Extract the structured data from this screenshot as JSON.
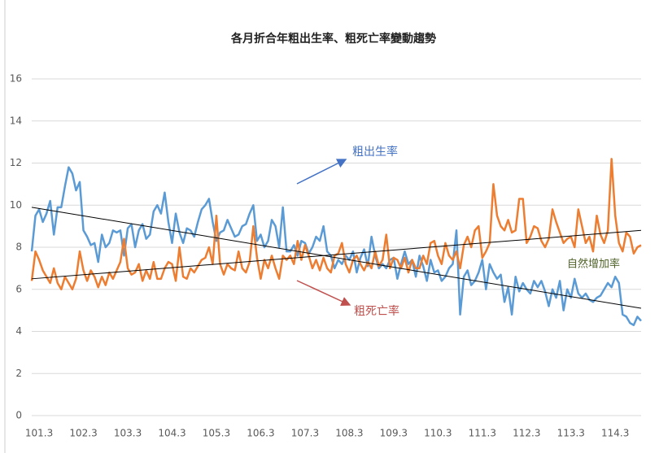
{
  "chart_data": {
    "type": "line",
    "title": "各月折合年粗出生率、粗死亡率變動趨勢",
    "categories": [
      null,
      null,
      "101.3",
      null,
      null,
      null,
      null,
      null,
      null,
      null,
      null,
      null,
      null,
      null,
      "102.3",
      null,
      null,
      null,
      null,
      null,
      null,
      null,
      null,
      null,
      null,
      null,
      "103.3",
      null,
      null,
      null,
      null,
      null,
      null,
      null,
      null,
      null,
      null,
      null,
      "104.3",
      null,
      null,
      null,
      null,
      null,
      null,
      null,
      null,
      null,
      null,
      null,
      "105.3",
      null,
      null,
      null,
      null,
      null,
      null,
      null,
      null,
      null,
      null,
      null,
      "106.3",
      null,
      null,
      null,
      null,
      null,
      null,
      null,
      null,
      null,
      null,
      null,
      "107.3",
      null,
      null,
      null,
      null,
      null,
      null,
      null,
      null,
      null,
      null,
      null,
      "108.3",
      null,
      null,
      null,
      null,
      null,
      null,
      null,
      null,
      null,
      null,
      null,
      "109.3",
      null,
      null,
      null,
      null,
      null,
      null,
      null,
      null,
      null,
      null,
      null,
      "110.3",
      null,
      null,
      null,
      null,
      null,
      null,
      null,
      null,
      null,
      null,
      null,
      "111.3",
      null,
      null,
      null,
      null,
      null,
      null,
      null,
      null,
      null,
      null,
      null,
      "112.3",
      null,
      null,
      null,
      null,
      null,
      null,
      null,
      null,
      null,
      null,
      null,
      "113.3",
      null,
      null,
      null,
      null,
      null,
      null,
      null,
      null,
      null,
      null,
      null,
      "114.3",
      null,
      null,
      null,
      null,
      null,
      null,
      null
    ],
    "series": [
      {
        "name": "粗出生率",
        "color": "#5b9bd5",
        "trend": [
          9.9,
          5.1
        ],
        "values": [
          7.8,
          9.5,
          9.8,
          9.2,
          9.6,
          10.2,
          8.6,
          9.9,
          9.9,
          10.9,
          11.8,
          11.5,
          10.7,
          11.1,
          8.8,
          8.5,
          8.1,
          8.2,
          7.3,
          8.6,
          8.0,
          8.2,
          8.8,
          8.7,
          8.8,
          7.6,
          8.9,
          9.1,
          8.0,
          8.8,
          9.1,
          8.4,
          8.6,
          9.7,
          10.0,
          9.6,
          10.6,
          9.2,
          8.2,
          9.6,
          8.7,
          8.2,
          8.9,
          8.8,
          8.5,
          9.2,
          9.8,
          10.0,
          10.3,
          9.2,
          8.3,
          8.7,
          8.8,
          9.3,
          8.9,
          8.5,
          8.6,
          9.0,
          9.1,
          9.6,
          10.0,
          8.3,
          8.6,
          8.0,
          8.3,
          9.3,
          9.0,
          8.0,
          9.9,
          7.8,
          7.8,
          8.1,
          7.6,
          8.3,
          8.2,
          7.7,
          8.0,
          8.5,
          8.3,
          9.0,
          7.8,
          7.6,
          7.0,
          7.4,
          7.2,
          7.6,
          7.4,
          7.8,
          6.8,
          7.5,
          7.9,
          7.1,
          8.5,
          7.6,
          7.0,
          7.2,
          7.0,
          7.4,
          7.5,
          6.5,
          7.2,
          7.8,
          7.2,
          7.4,
          6.6,
          7.6,
          7.1,
          6.4,
          7.4,
          6.8,
          6.9,
          6.4,
          6.6,
          7.0,
          7.2,
          8.8,
          4.8,
          6.6,
          6.9,
          6.2,
          6.4,
          6.8,
          7.4,
          6.0,
          7.2,
          6.8,
          6.5,
          6.7,
          5.4,
          6.1,
          4.8,
          6.6,
          5.9,
          6.3,
          6.0,
          5.8,
          6.4,
          6.1,
          6.4,
          5.9,
          5.2,
          6.0,
          5.6,
          6.4,
          5.0,
          6.0,
          5.6,
          6.5,
          5.8,
          5.6,
          5.8,
          5.5,
          5.4,
          5.6,
          5.7,
          6.0,
          6.3,
          6.1,
          6.6,
          6.3,
          4.8,
          4.7,
          4.4,
          4.3,
          4.7,
          4.5
        ]
      },
      {
        "name": "粗死亡率",
        "color": "#ed7d31",
        "trend": [
          6.5,
          8.8
        ],
        "values": [
          6.4,
          7.8,
          7.4,
          6.9,
          6.6,
          6.3,
          7.0,
          6.3,
          6.0,
          6.6,
          6.3,
          6.0,
          6.5,
          7.8,
          6.9,
          6.4,
          6.9,
          6.6,
          6.1,
          6.6,
          6.2,
          6.8,
          6.5,
          6.9,
          7.3,
          8.4,
          7.0,
          6.7,
          6.8,
          7.2,
          6.4,
          6.9,
          6.5,
          7.3,
          6.5,
          6.5,
          7.0,
          7.3,
          7.2,
          6.4,
          8.0,
          6.6,
          6.5,
          7.0,
          6.8,
          7.1,
          7.4,
          7.5,
          8.0,
          7.2,
          9.5,
          7.2,
          6.7,
          7.2,
          7.0,
          6.9,
          7.8,
          7.0,
          6.8,
          7.3,
          9.0,
          7.5,
          6.5,
          7.4,
          7.0,
          7.6,
          7.0,
          6.5,
          7.6,
          7.4,
          7.6,
          7.2,
          8.3,
          7.4,
          8.1,
          7.6,
          7.0,
          7.4,
          6.9,
          7.5,
          7.0,
          6.8,
          7.6,
          7.7,
          8.2,
          7.2,
          6.8,
          7.4,
          7.6,
          7.2,
          6.9,
          7.3,
          7.0,
          7.8,
          7.1,
          7.4,
          8.6,
          7.0,
          7.5,
          7.4,
          7.0,
          7.5,
          6.8,
          7.4,
          7.0,
          7.0,
          7.6,
          7.2,
          8.2,
          8.3,
          7.6,
          7.2,
          8.2,
          7.6,
          7.4,
          7.8,
          7.0,
          8.1,
          8.5,
          8.0,
          8.8,
          9.0,
          7.5,
          7.8,
          8.2,
          11.0,
          9.5,
          9.0,
          8.8,
          9.3,
          8.7,
          8.8,
          10.3,
          10.3,
          8.2,
          8.5,
          9.0,
          8.9,
          8.3,
          8.0,
          8.4,
          9.8,
          9.2,
          8.7,
          8.2,
          8.4,
          8.5,
          8.0,
          9.8,
          9.0,
          8.2,
          8.5,
          7.8,
          9.5,
          8.6,
          8.2,
          8.8,
          12.2,
          9.5,
          8.2,
          7.8,
          8.7,
          8.5,
          7.7,
          8.0,
          8.1
        ]
      }
    ],
    "annotation": "自然增加率",
    "ylim": [
      0,
      16
    ],
    "yticks": [
      0,
      2,
      4,
      6,
      8,
      10,
      12,
      14,
      16
    ],
    "grid": true
  }
}
